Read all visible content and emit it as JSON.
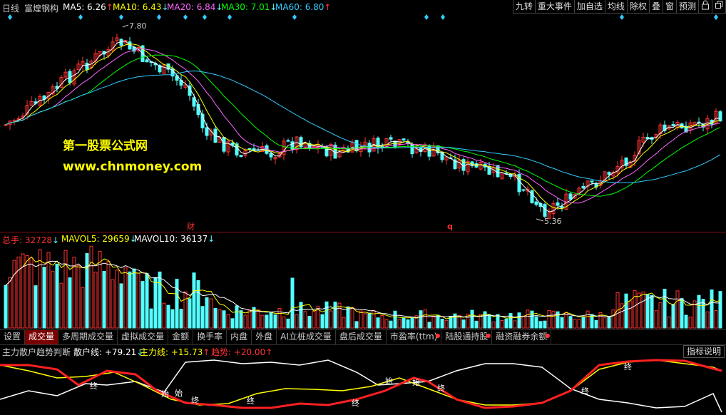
{
  "top": {
    "period": "日线",
    "stock": "富煌钢构",
    "ma5": {
      "label": "MA5: 6.26",
      "arrow": "↑",
      "color": "#ffffff"
    },
    "ma10": {
      "label": "MA10: 6.43",
      "arrow": "↓",
      "color": "#ffff00"
    },
    "ma20": {
      "label": "MA20: 6.84",
      "arrow": "↓",
      "color": "#ff66ff"
    },
    "ma30": {
      "label": "MA30: 7.01",
      "arrow": "↓",
      "color": "#00ff00"
    },
    "ma60": {
      "label": "MA60: 6.80",
      "arrow": "↑",
      "color": "#33ccff"
    }
  },
  "toolbar": [
    "九转",
    "重大事件",
    "加自选",
    "均线",
    "除权",
    "叠",
    "窗",
    "预测"
  ],
  "toolbar_icons": [
    "lock-icon",
    "restore-icon"
  ],
  "price": {
    "high_label": "7.80",
    "low_label": "5.36",
    "marker_cai": "财",
    "marker_q": "q"
  },
  "watermark": {
    "line1": "第一股票公式网",
    "line2": "www.chnmoney.com"
  },
  "volume": {
    "total_label": "总手: 32728",
    "total_arrow": "↓",
    "mavol5_label": "MAVOL5: 29659",
    "mavol5_arrow": "↓",
    "mavol10_label": "MAVOL10: 36137",
    "mavol10_arrow": "↓"
  },
  "tabs": [
    {
      "label": "设置"
    },
    {
      "label": "成交量",
      "active": true
    },
    {
      "label": "多周期成交量"
    },
    {
      "label": "虚拟成交量"
    },
    {
      "label": "金额"
    },
    {
      "label": "换手率"
    },
    {
      "label": "内盘"
    },
    {
      "label": "外盘"
    },
    {
      "label": "AI立桩成交量"
    },
    {
      "label": "盘后成交量"
    },
    {
      "label": "市盈率(ttm)",
      "dot": true
    },
    {
      "label": "陆股通持股",
      "dot": true
    },
    {
      "label": "融资融券余额",
      "dot": true
    }
  ],
  "indicator": {
    "name": "主力散户趋势判断",
    "retail_label": "散户线: +79.21",
    "retail_arrow": "↓",
    "main_label": "主力线: +15.73",
    "main_arrow": "↑",
    "trend_label": "趋势: +20.00",
    "trend_arrow": "↑",
    "help_button": "指标说明",
    "signal_start": "始",
    "signal_end": "终"
  },
  "colors": {
    "up": "#ff3232",
    "down": "#54ffff",
    "bg": "#000000",
    "grid": "#8a1010"
  }
}
